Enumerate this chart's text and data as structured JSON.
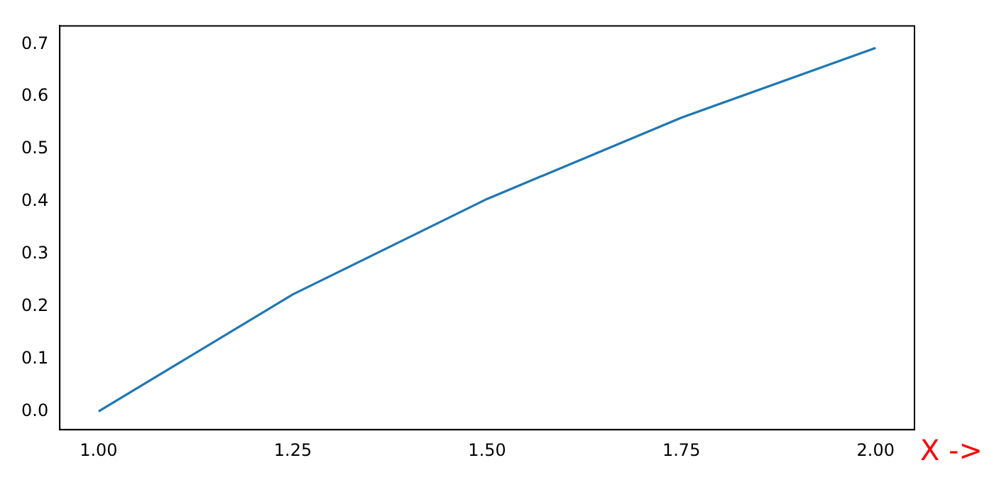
{
  "chart_data": {
    "type": "line",
    "xlabel": "X ->",
    "x": [
      1,
      1.25,
      1.5,
      1.75,
      2
    ],
    "series": [
      {
        "color": "#1f77b4",
        "values": [
          0,
          0.223,
          0.405,
          0.56,
          0.693
        ]
      }
    ],
    "xlim": [
      0.95,
      2.05
    ],
    "ylim": [
      -0.035,
      0.735
    ],
    "xticks": [
      {
        "value": 1,
        "label": "1.00"
      },
      {
        "value": 1.25,
        "label": "1.25"
      },
      {
        "value": 1.5,
        "label": "1.50"
      },
      {
        "value": 1.75,
        "label": "1.75"
      },
      {
        "value": 2,
        "label": "2.00"
      }
    ],
    "yticks": [
      {
        "value": 0,
        "label": "0.0"
      },
      {
        "value": 0.1,
        "label": "0.1"
      },
      {
        "value": 0.2,
        "label": "0.2"
      },
      {
        "value": 0.3,
        "label": "0.3"
      },
      {
        "value": 0.4,
        "label": "0.4"
      },
      {
        "value": 0.5,
        "label": "0.5"
      },
      {
        "value": 0.6,
        "label": "0.6"
      },
      {
        "value": 0.7,
        "label": "0.7"
      }
    ],
    "grid": false,
    "legend": false,
    "marker": "none",
    "line_style": "solid"
  }
}
